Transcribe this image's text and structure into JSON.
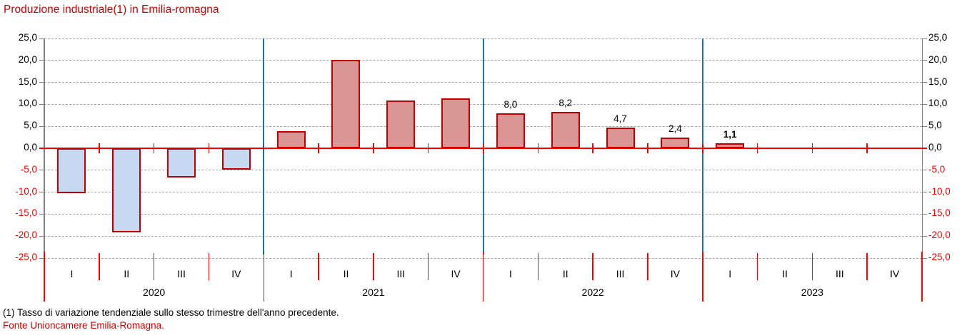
{
  "chart_data": {
    "type": "bar",
    "title": "Produzione industriale(1) in Emilia-romagna",
    "xlabel": "",
    "ylabel": "",
    "ylim": [
      -25,
      25
    ],
    "ytick_step": 5,
    "grid": "horizontal-dashed",
    "legend": "none",
    "yticks": [
      {
        "value": 25,
        "label": "25,0"
      },
      {
        "value": 20,
        "label": "20,0"
      },
      {
        "value": 15,
        "label": "15,0"
      },
      {
        "value": 10,
        "label": "10,0"
      },
      {
        "value": 5,
        "label": "5,0"
      },
      {
        "value": 0,
        "label": "0,0"
      },
      {
        "value": -5,
        "label": "-5,0"
      },
      {
        "value": -10,
        "label": "-10,0"
      },
      {
        "value": -15,
        "label": "-15,0"
      },
      {
        "value": -20,
        "label": "-20,0"
      },
      {
        "value": -25,
        "label": "-25,0"
      }
    ],
    "groups": [
      {
        "year": "2020",
        "quarters": [
          "I",
          "II",
          "III",
          "IV"
        ],
        "values": [
          -10.3,
          -19.1,
          -6.6,
          -4.9
        ],
        "value_labels": [
          null,
          null,
          null,
          null
        ],
        "labels_bold": false
      },
      {
        "year": "2021",
        "quarters": [
          "I",
          "II",
          "III",
          "IV"
        ],
        "values": [
          3.9,
          20.2,
          10.8,
          11.4
        ],
        "value_labels": [
          null,
          null,
          null,
          null
        ],
        "labels_bold": false
      },
      {
        "year": "2022",
        "quarters": [
          "I",
          "II",
          "III",
          "IV"
        ],
        "values": [
          8.0,
          8.2,
          4.7,
          2.4
        ],
        "value_labels": [
          "8,0",
          "8,2",
          "4,7",
          "2,4"
        ],
        "labels_bold": false
      },
      {
        "year": "2023",
        "quarters": [
          "I",
          "II",
          "III",
          "IV"
        ],
        "values": [
          1.1,
          null,
          null,
          null
        ],
        "value_labels": [
          "1,1",
          null,
          null,
          null
        ],
        "labels_bold": true
      }
    ],
    "colors": {
      "title": "#cc0000",
      "positive_bar_fill": "#d99694",
      "negative_bar_fill": "#c6d9f1",
      "bar_border": "#c00000",
      "zero_line": "#ff0000",
      "quarter_tick": "#ff0000",
      "year_separator": "#1f6fb5",
      "gridline": "#a3a3a3",
      "axis_line": "#808080",
      "positive_tick_label": "#000000",
      "negative_tick_label": "#ff0000",
      "value_label": "#000000",
      "source_text": "#cc0000"
    }
  },
  "footnote": "(1) Tasso di variazione tendenziale sullo stesso trimestre dell'anno precedente.",
  "source": "Fonte Unioncamere Emilia-Romagna."
}
